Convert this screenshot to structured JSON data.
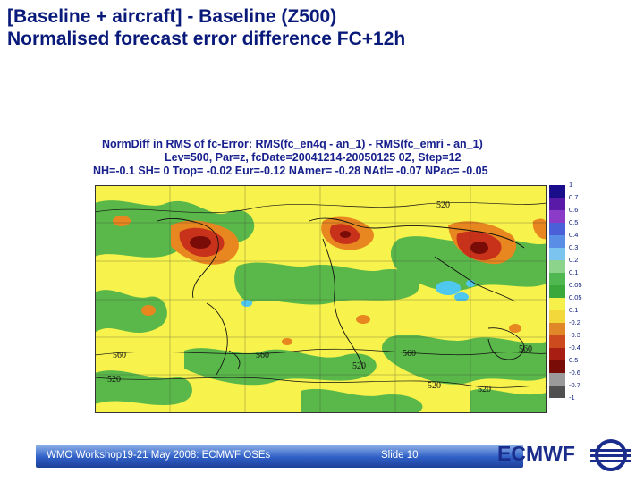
{
  "slide": {
    "title_line1": "[Baseline + aircraft] - Baseline (Z500)",
    "title_line2": "Normalised forecast error difference FC+12h"
  },
  "plot": {
    "header_line1": "NormDiff in RMS of fc-Error: RMS(fc_en4q - an_1) - RMS(fc_emri - an_1)",
    "header_line2": "Lev=500, Par=z, fcDate=20041214-20050125 0Z, Step=12",
    "header_line3": "NH=-0.1 SH= 0 Trop= -0.02 Eur=-0.12 NAmer= -0.28 NAtl= -0.07 NPac= -0.05",
    "contour_labels": [
      "520",
      "520",
      "560",
      "560",
      "560",
      "520",
      "560",
      "520",
      "520"
    ]
  },
  "colorbar": {
    "labels": [
      "1",
      "0.7",
      "0.6",
      "0.5",
      "0.4",
      "0.3",
      "0.2",
      "0.1",
      "0.05",
      "0.05",
      "0.1",
      "-0.2",
      "-0.3",
      "-0.4",
      "0.5",
      "-0.6",
      "-0.7",
      "-1"
    ],
    "colors": [
      "#1a0d8c",
      "#5a1aa8",
      "#8a3cc8",
      "#4a60d8",
      "#5a8ee6",
      "#7cc4f0",
      "#8cd48c",
      "#50b850",
      "#3aa83a",
      "#f6f04a",
      "#f2d83a",
      "#e08828",
      "#cc4a1e",
      "#a81e12",
      "#7a0c08",
      "#9a9a9a",
      "#505050"
    ]
  },
  "footer": {
    "workshop": "WMO Workshop19-21 May 2008: ECMWF OSEs",
    "slide_number": "Slide 10",
    "logo": "ECMWF"
  }
}
